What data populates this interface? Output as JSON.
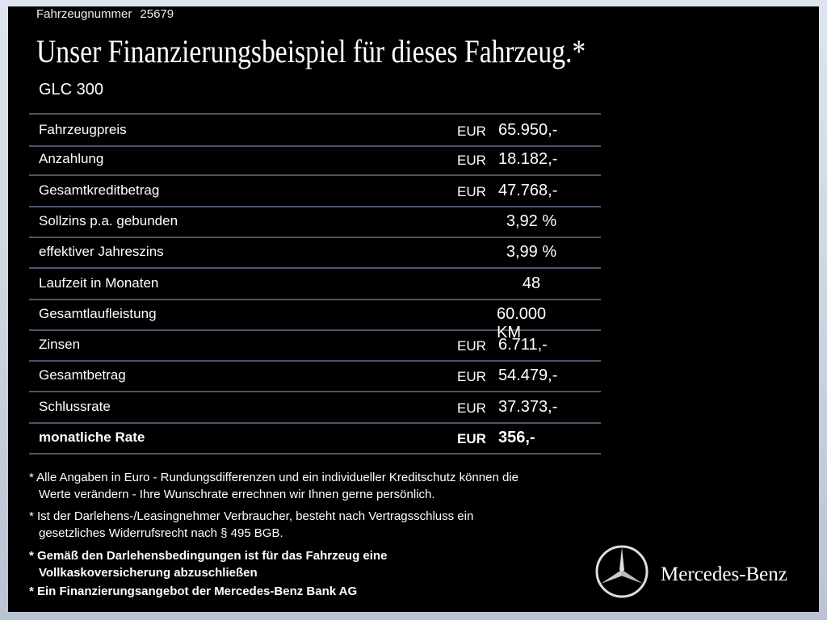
{
  "header": {
    "vehicle_number_label": "Fahrzeugnummer",
    "vehicle_number": "25679",
    "title": "Unser Finanzierungsbeispiel für dieses Fahrzeug.*",
    "model": "GLC 300"
  },
  "table": {
    "rows": [
      {
        "label": "Fahrzeugpreis",
        "currency": "EUR",
        "value": "65.950,-"
      },
      {
        "label": "Anzahlung",
        "currency": "EUR",
        "value": "18.182,-"
      },
      {
        "label": "Gesamtkreditbetrag",
        "currency": "EUR",
        "value": "47.768,-"
      },
      {
        "label": "Sollzins p.a. gebunden",
        "value": "3,92 %"
      },
      {
        "label": "effektiver Jahreszins",
        "value": "3,99 %"
      },
      {
        "label": "Laufzeit in Monaten",
        "value": "48"
      },
      {
        "label": "Gesamtlaufleistung",
        "value": "60.000 KM"
      },
      {
        "label": "Zinsen",
        "currency": "EUR",
        "value": "6.711,-"
      },
      {
        "label": "Gesamtbetrag",
        "currency": "EUR",
        "value": "54.479,-"
      },
      {
        "label": "Schlussrate",
        "currency": "EUR",
        "value": "37.373,-"
      },
      {
        "label": "monatliche Rate",
        "currency": "EUR",
        "value": "356,-"
      }
    ]
  },
  "footnotes": [
    {
      "lines": [
        "* Alle Angaben in Euro - Rundungsdifferenzen und ein individueller Kreditschutz können die",
        "Werte verändern - Ihre Wunschrate errechnen wir Ihnen gerne persönlich."
      ]
    },
    {
      "lines": [
        "* Ist der Darlehens-/Leasingnehmer Verbraucher, besteht nach Vertragsschluss ein",
        "gesetzliches Widerrufsrecht nach § 495 BGB."
      ]
    },
    {
      "lines": [
        "* Gemäß den Darlehensbedingungen ist für das Fahrzeug eine",
        "Vollkaskoversicherung abzuschließen"
      ]
    },
    {
      "lines": [
        "* Ein Finanzierungsangebot der Mercedes-Benz Bank AG"
      ]
    }
  ],
  "brand": "Mercedes-Benz"
}
